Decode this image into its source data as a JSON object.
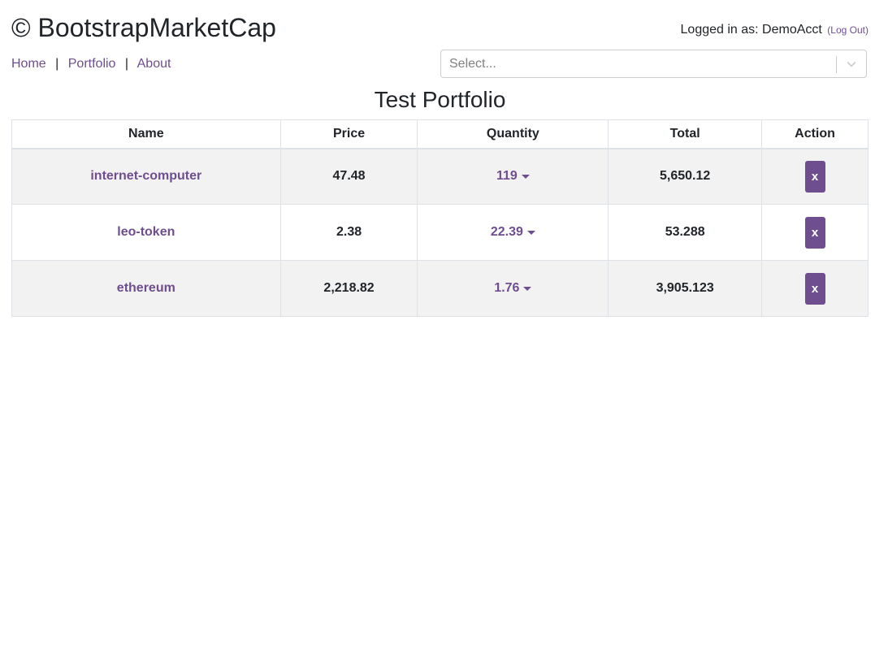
{
  "header": {
    "brand": "© BootstrapMarketCap",
    "login_prefix": "Logged in as: DemoAcct",
    "logout_label": "(Log Out)"
  },
  "nav": {
    "home": "Home",
    "portfolio": "Portfolio",
    "about": "About",
    "separator": "|"
  },
  "search": {
    "placeholder": "Select..."
  },
  "portfolio": {
    "title": "Test Portfolio",
    "columns": [
      "Name",
      "Price",
      "Quantity",
      "Total",
      "Action"
    ],
    "rows": [
      {
        "name": "internet-computer",
        "price": "47.48",
        "quantity": "119",
        "total": "5,650.12",
        "action": "x"
      },
      {
        "name": "leo-token",
        "price": "2.38",
        "quantity": "22.39",
        "total": "53.288",
        "action": "x"
      },
      {
        "name": "ethereum",
        "price": "2,218.82",
        "quantity": "1.76",
        "total": "3,905.123",
        "action": "x"
      }
    ]
  },
  "colors": {
    "accent": "#6f4e8f",
    "stripe": "#f2f2f2",
    "border": "#dee2e6"
  }
}
